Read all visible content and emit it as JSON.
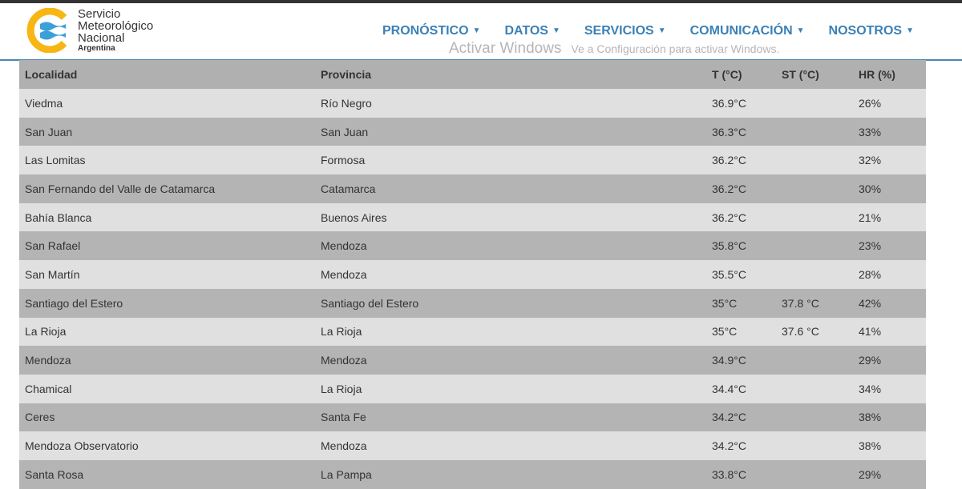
{
  "brand": {
    "line1": "Servicio",
    "line2": "Meteorológico",
    "line3": "Nacional",
    "line4": "Argentina"
  },
  "colors": {
    "accent": "#3b80b5",
    "logo_yellow": "#f7b614",
    "logo_blue": "#3aa0d8"
  },
  "nav": [
    {
      "label": "PRONÓSTICO"
    },
    {
      "label": "DATOS"
    },
    {
      "label": "SERVICIOS"
    },
    {
      "label": "COMUNICACIÓN"
    },
    {
      "label": "NOSOTROS"
    }
  ],
  "table": {
    "headers": [
      "Localidad",
      "Provincia",
      "T (°C)",
      "ST (°C)",
      "HR (%)"
    ],
    "rows": [
      [
        "Viedma",
        "Río Negro",
        "36.9°C",
        "",
        "26%"
      ],
      [
        "San Juan",
        "San Juan",
        "36.3°C",
        "",
        "33%"
      ],
      [
        "Las Lomitas",
        "Formosa",
        "36.2°C",
        "",
        "32%"
      ],
      [
        "San Fernando del Valle de Catamarca",
        "Catamarca",
        "36.2°C",
        "",
        "30%"
      ],
      [
        "Bahía Blanca",
        "Buenos Aires",
        "36.2°C",
        "",
        "21%"
      ],
      [
        "San Rafael",
        "Mendoza",
        "35.8°C",
        "",
        "23%"
      ],
      [
        "San Martín",
        "Mendoza",
        "35.5°C",
        "",
        "28%"
      ],
      [
        "Santiago del Estero",
        "Santiago del Estero",
        "35°C",
        "37.8 °C",
        "42%"
      ],
      [
        "La Rioja",
        "La Rioja",
        "35°C",
        "37.6 °C",
        "41%"
      ],
      [
        "Mendoza",
        "Mendoza",
        "34.9°C",
        "",
        "29%"
      ],
      [
        "Chamical",
        "La Rioja",
        "34.4°C",
        "",
        "34%"
      ],
      [
        "Ceres",
        "Santa Fe",
        "34.2°C",
        "",
        "38%"
      ],
      [
        "Mendoza Observatorio",
        "Mendoza",
        "34.2°C",
        "",
        "38%"
      ],
      [
        "Santa Rosa",
        "La Pampa",
        "33.8°C",
        "",
        "29%"
      ]
    ]
  },
  "watermark": {
    "title": "Activar Windows",
    "subtitle": "Ve a Configuración para activar Windows."
  }
}
